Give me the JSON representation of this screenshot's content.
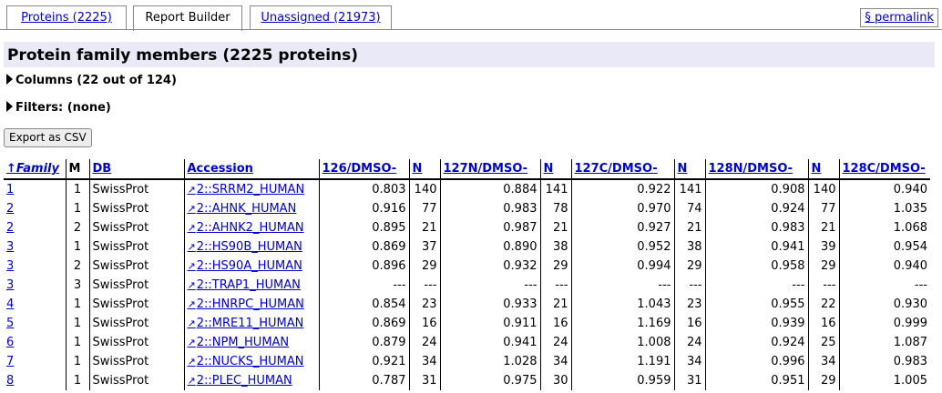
{
  "tabs": [
    {
      "label": "Proteins (2225)"
    },
    {
      "label": "Report Builder"
    },
    {
      "label": "Unassigned (21973)"
    }
  ],
  "permalink": "§ permalink",
  "title": "Protein family members (2225 proteins)",
  "columns_toggle": "Columns (22 out of 124)",
  "filters_toggle": "Filters: (none)",
  "export_button": "Export as CSV",
  "table": {
    "headers": [
      "↑Family",
      "M",
      "DB",
      "Accession",
      "126/DMSO-",
      "N",
      "127N/DMSO-",
      "N",
      "127C/DMSO-",
      "N",
      "128N/DMSO-",
      "N",
      "128C/DMSO-"
    ],
    "rows": [
      [
        "1",
        "1",
        "SwissProt",
        "2::SRRM2_HUMAN",
        "0.803",
        "140",
        "0.884",
        "141",
        "0.922",
        "141",
        "0.908",
        "140",
        "0.940"
      ],
      [
        "2",
        "1",
        "SwissProt",
        "2::AHNK_HUMAN",
        "0.916",
        "77",
        "0.983",
        "78",
        "0.970",
        "74",
        "0.924",
        "77",
        "1.035"
      ],
      [
        "2",
        "2",
        "SwissProt",
        "2::AHNK2_HUMAN",
        "0.895",
        "21",
        "0.987",
        "21",
        "0.927",
        "21",
        "0.983",
        "21",
        "1.068"
      ],
      [
        "3",
        "1",
        "SwissProt",
        "2::HS90B_HUMAN",
        "0.869",
        "37",
        "0.890",
        "38",
        "0.952",
        "38",
        "0.941",
        "39",
        "0.954"
      ],
      [
        "3",
        "2",
        "SwissProt",
        "2::HS90A_HUMAN",
        "0.896",
        "29",
        "0.932",
        "29",
        "0.994",
        "29",
        "0.958",
        "29",
        "0.940"
      ],
      [
        "3",
        "3",
        "SwissProt",
        "2::TRAP1_HUMAN",
        "---",
        "---",
        "---",
        "---",
        "---",
        "---",
        "---",
        "---",
        "---"
      ],
      [
        "4",
        "1",
        "SwissProt",
        "2::HNRPC_HUMAN",
        "0.854",
        "23",
        "0.933",
        "21",
        "1.043",
        "23",
        "0.955",
        "22",
        "0.930"
      ],
      [
        "5",
        "1",
        "SwissProt",
        "2::MRE11_HUMAN",
        "0.869",
        "16",
        "0.911",
        "16",
        "1.169",
        "16",
        "0.939",
        "16",
        "0.999"
      ],
      [
        "6",
        "1",
        "SwissProt",
        "2::NPM_HUMAN",
        "0.879",
        "24",
        "0.941",
        "24",
        "1.008",
        "24",
        "0.924",
        "25",
        "1.087"
      ],
      [
        "7",
        "1",
        "SwissProt",
        "2::NUCKS_HUMAN",
        "0.921",
        "34",
        "1.028",
        "34",
        "1.191",
        "34",
        "0.996",
        "34",
        "0.983"
      ],
      [
        "8",
        "1",
        "SwissProt",
        "2::PLEC_HUMAN",
        "0.787",
        "31",
        "0.975",
        "30",
        "0.959",
        "31",
        "0.951",
        "29",
        "1.005"
      ]
    ]
  }
}
